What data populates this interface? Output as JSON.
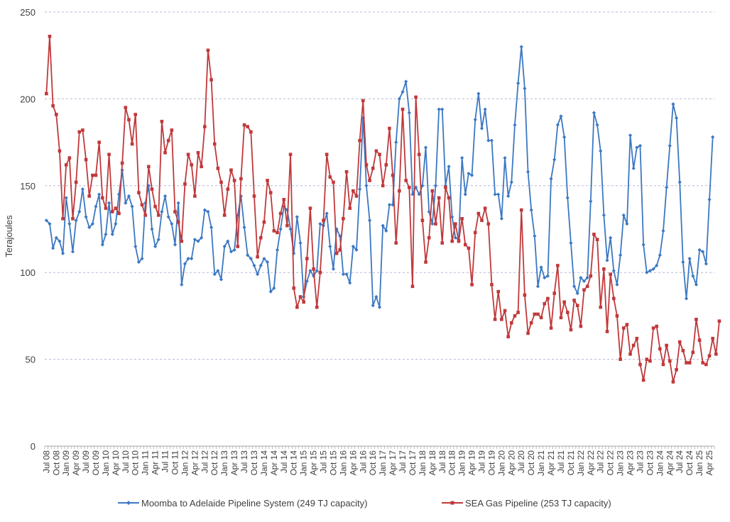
{
  "chart_data": {
    "type": "line",
    "title": "",
    "xlabel": "",
    "ylabel": "Terajoules",
    "ylim": [
      0,
      250
    ],
    "yticks": [
      "0",
      "50",
      "100",
      "150",
      "200",
      "250"
    ],
    "grid": "horizontal dashed",
    "legend_position": "bottom",
    "x_start": "Jul 08",
    "x_end": "Jun 25",
    "x_tick_labels": [
      "Jul 08",
      "Oct 08",
      "Jan 09",
      "Apr 09",
      "Jul 09",
      "Oct 09",
      "Jan 10",
      "Apr 10",
      "Jul 10",
      "Oct 10",
      "Jan 11",
      "Apr 11",
      "Jul 11",
      "Oct 11",
      "Jan 12",
      "Apr 12",
      "Jul 12",
      "Oct 12",
      "Jan 13",
      "Apr 13",
      "Jul 13",
      "Oct 13",
      "Jan 14",
      "Apr 14",
      "Jul 14",
      "Oct 14",
      "Jan 15",
      "Apr 15",
      "Jul 15",
      "Oct 15",
      "Jan 16",
      "Apr 16",
      "Jul 16",
      "Oct 16",
      "Jan 17",
      "Apr 17",
      "Jul 17",
      "Oct 17",
      "Jan 18",
      "Apr 18",
      "Jul 18",
      "Oct 18",
      "Jan 19",
      "Apr 19",
      "Jul 19",
      "Oct 19",
      "Jan 20",
      "Apr 20",
      "Jul 20",
      "Oct 20",
      "Jan 21",
      "Apr 21",
      "Jul 21",
      "Oct 21",
      "Jan 22",
      "Apr 22",
      "Jul 22",
      "Oct 22",
      "Jan 23",
      "Apr 23",
      "Jul 23",
      "Oct 23",
      "Jan 24",
      "Apr 24",
      "Jul 24",
      "Oct 24",
      "Jan 25",
      "Apr 25"
    ],
    "series": [
      {
        "name": "Moomba to Adelaide Pipeline System (249 TJ capacity)",
        "color": "#3c78c2",
        "values": [
          130,
          128,
          114,
          120,
          118,
          111,
          143,
          128,
          112,
          130,
          135,
          148,
          132,
          126,
          128,
          138,
          145,
          116,
          122,
          140,
          122,
          128,
          145,
          159,
          140,
          144,
          138,
          115,
          106,
          108,
          140,
          150,
          125,
          115,
          119,
          135,
          144,
          132,
          128,
          116,
          140,
          93,
          105,
          108,
          108,
          119,
          118,
          120,
          136,
          135,
          126,
          99,
          101,
          96,
          115,
          118,
          112,
          113,
          133,
          144,
          126,
          110,
          108,
          104,
          99,
          104,
          108,
          106,
          89,
          91,
          113,
          125,
          138,
          136,
          125,
          111,
          132,
          117,
          86,
          95,
          101,
          98,
          101,
          128,
          127,
          134,
          115,
          102,
          125,
          121,
          99,
          99,
          94,
          115,
          113,
          148,
          189,
          150,
          130,
          81,
          86,
          80,
          127,
          124,
          139,
          139,
          175,
          200,
          204,
          210,
          192,
          145,
          149,
          145,
          150,
          172,
          135,
          128,
          150,
          194,
          194,
          150,
          161,
          132,
          120,
          119,
          166,
          145,
          157,
          156,
          188,
          203,
          183,
          194,
          176,
          176,
          145,
          145,
          131,
          166,
          144,
          152,
          185,
          209,
          230,
          206,
          158,
          136,
          121,
          92,
          103,
          97,
          98,
          154,
          165,
          185,
          190,
          178,
          143,
          117,
          92,
          88,
          97,
          95,
          97,
          141,
          192,
          185,
          170,
          133,
          107,
          120,
          101,
          93,
          110,
          133,
          128,
          179,
          160,
          172,
          173,
          116,
          100,
          101,
          102,
          104,
          110,
          124,
          149,
          173,
          197,
          189,
          152,
          106,
          85,
          108,
          98,
          93,
          113,
          112,
          105,
          142,
          178
        ]
      },
      {
        "name": "SEA Gas Pipeline (253 TJ capacity)",
        "color": "#c0393b",
        "values": [
          203,
          236,
          196,
          191,
          170,
          131,
          162,
          166,
          131,
          152,
          181,
          182,
          165,
          144,
          156,
          156,
          175,
          143,
          137,
          168,
          135,
          137,
          134,
          163,
          195,
          188,
          174,
          191,
          146,
          139,
          133,
          161,
          148,
          138,
          133,
          187,
          169,
          176,
          182,
          135,
          129,
          118,
          151,
          168,
          162,
          144,
          169,
          161,
          184,
          228,
          211,
          174,
          160,
          152,
          133,
          148,
          159,
          153,
          115,
          154,
          185,
          184,
          181,
          144,
          109,
          120,
          129,
          153,
          146,
          124,
          123,
          134,
          142,
          127,
          168,
          91,
          80,
          86,
          83,
          108,
          137,
          102,
          80,
          100,
          130,
          168,
          155,
          152,
          111,
          113,
          131,
          158,
          137,
          147,
          144,
          176,
          199,
          162,
          153,
          160,
          170,
          168,
          150,
          162,
          183,
          156,
          117,
          147,
          194,
          153,
          149,
          92,
          201,
          168,
          130,
          106,
          120,
          147,
          128,
          143,
          117,
          149,
          143,
          118,
          128,
          118,
          131,
          116,
          114,
          93,
          123,
          134,
          130,
          137,
          128,
          93,
          73,
          89,
          73,
          78,
          63,
          71,
          75,
          77,
          136,
          87,
          65,
          71,
          76,
          76,
          74,
          82,
          85,
          68,
          88,
          104,
          74,
          83,
          77,
          67,
          84,
          81,
          69,
          90,
          92,
          98,
          122,
          119,
          80,
          102,
          66,
          99,
          85,
          75,
          50,
          68,
          70,
          53,
          58,
          62,
          47,
          38,
          50,
          49,
          68,
          69,
          56,
          47,
          58,
          49,
          37,
          44,
          60,
          55,
          48,
          48,
          54,
          73,
          61,
          48,
          47,
          52,
          62,
          53,
          72
        ]
      }
    ]
  }
}
